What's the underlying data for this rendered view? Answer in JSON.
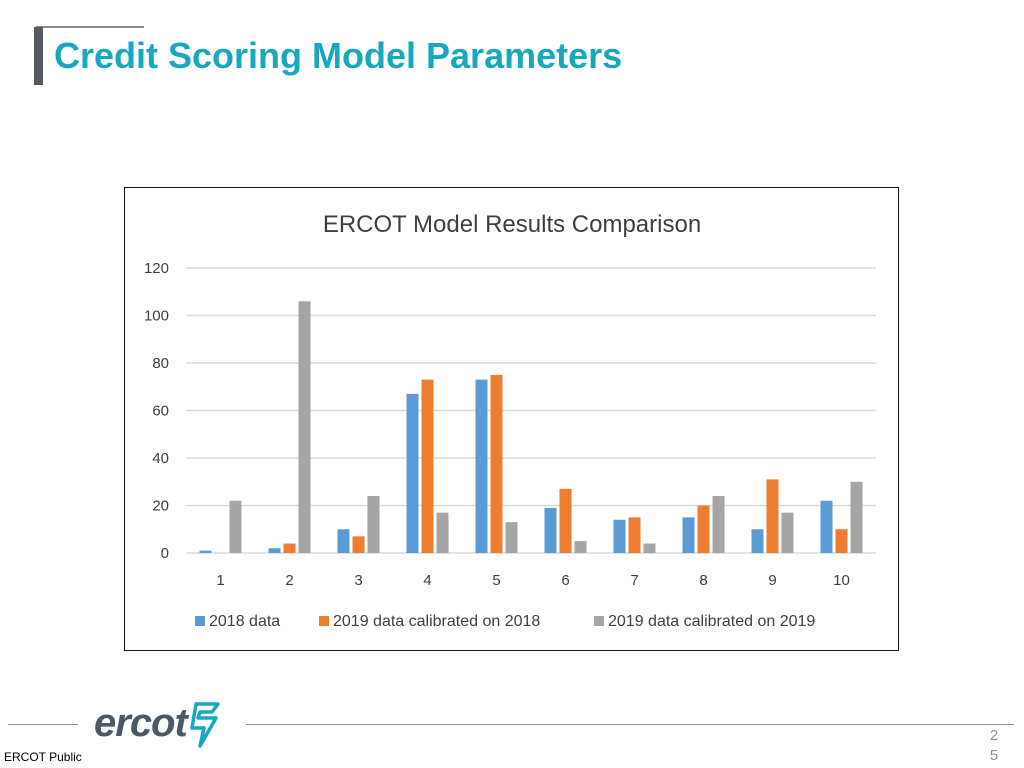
{
  "slide": {
    "title": "Credit Scoring Model Parameters",
    "footer_label": "ERCOT Public",
    "page_number_line1": "2",
    "page_number_line2": "5",
    "logo_text": "ercot",
    "logo_icon": "ercot-bolt-icon"
  },
  "colors": {
    "title": "#17a7bf",
    "title_bar": "#555a60",
    "series": [
      "#5b9bd5",
      "#ed7d31",
      "#a5a5a5"
    ],
    "gridline": "#d9d9d9",
    "logo": "#4a5966",
    "logo_mark": "#17a7bf"
  },
  "chart_data": {
    "type": "bar",
    "title": "ERCOT Model Results Comparison",
    "xlabel": "",
    "ylabel": "",
    "categories": [
      "1",
      "2",
      "3",
      "4",
      "5",
      "6",
      "7",
      "8",
      "9",
      "10"
    ],
    "series": [
      {
        "name": "2018 data",
        "values": [
          1,
          2,
          10,
          67,
          73,
          19,
          14,
          15,
          10,
          22
        ]
      },
      {
        "name": "2019 data calibrated on 2018",
        "values": [
          0,
          4,
          7,
          73,
          75,
          27,
          15,
          20,
          31,
          10
        ]
      },
      {
        "name": "2019 data calibrated on 2019",
        "values": [
          22,
          106,
          24,
          17,
          13,
          5,
          4,
          24,
          17,
          30
        ]
      }
    ],
    "ylim": [
      0,
      120
    ],
    "yticks": [
      0,
      20,
      40,
      60,
      80,
      100,
      120
    ],
    "grid": true,
    "legend_position": "bottom"
  }
}
